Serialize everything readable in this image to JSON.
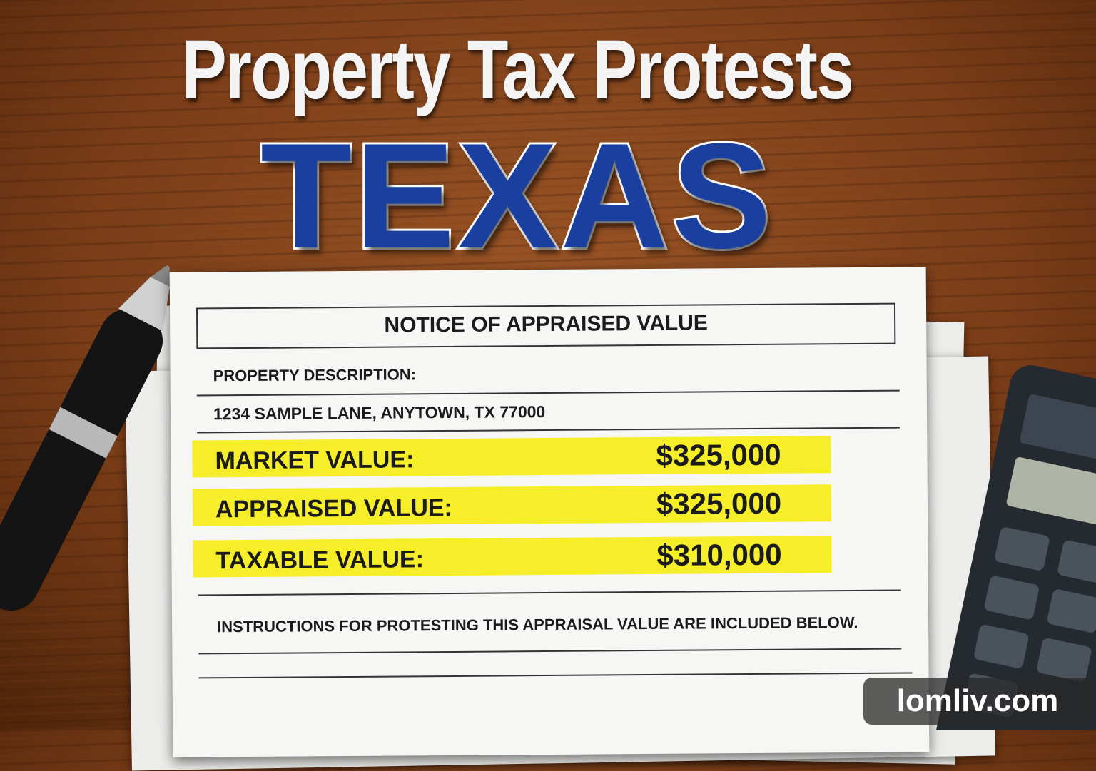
{
  "header": {
    "title": "Property Tax Protests",
    "subtitle": "TEXAS"
  },
  "notice": {
    "heading": "NOTICE OF APPRAISED VALUE",
    "property_label": "PROPERTY DESCRIPTION:",
    "address": "1234 SAMPLE LANE, ANYTOWN, TX 77000",
    "rows": [
      {
        "label": "MARKET VALUE:",
        "value": "$325,000"
      },
      {
        "label": "APPRAISED VALUE:",
        "value": "$325,000"
      },
      {
        "label": "TAXABLE VALUE:",
        "value": "$310,000"
      }
    ],
    "instructions": "INSTRUCTIONS FOR PROTESTING THIS APPRAISAL VALUE ARE INCLUDED BELOW."
  },
  "watermark": "lomliv.com"
}
